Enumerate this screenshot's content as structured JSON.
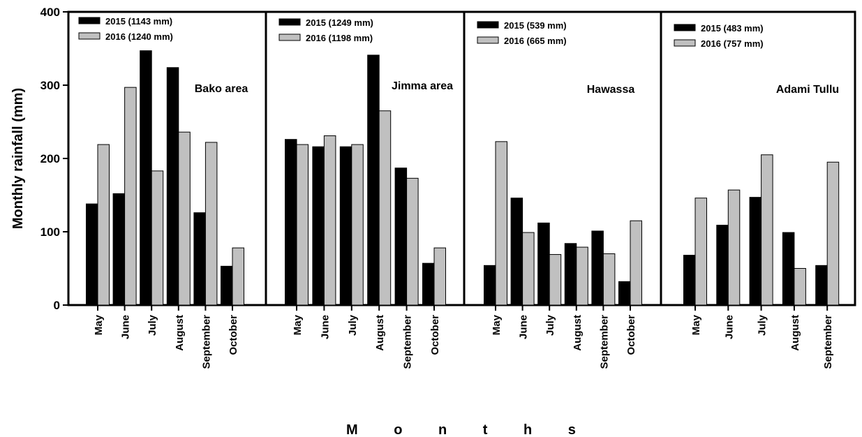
{
  "chart_data": {
    "type": "bar",
    "ylabel": "Monthly rainfall (mm)",
    "xlabel": "M o n t h s",
    "ylim": [
      0,
      400
    ],
    "yticks": [
      0,
      100,
      200,
      300,
      400
    ],
    "colors": {
      "2015": "#000000",
      "2016": "#c0c0c0"
    },
    "panels": [
      {
        "title": "Bako area",
        "categories": [
          "May",
          "June",
          "July",
          "August",
          "September",
          "October"
        ],
        "series": [
          {
            "name": "2015 (1143 mm)",
            "values": [
              138,
              152,
              347,
              324,
              126,
              53
            ]
          },
          {
            "name": "2016 (1240 mm)",
            "values": [
              219,
              297,
              183,
              236,
              222,
              78
            ]
          }
        ]
      },
      {
        "title": "Jimma area",
        "categories": [
          "May",
          "June",
          "July",
          "August",
          "September",
          "October"
        ],
        "series": [
          {
            "name": "2015 (1249 mm)",
            "values": [
              226,
              216,
              216,
              341,
              187,
              57
            ]
          },
          {
            "name": "2016 (1198 mm)",
            "values": [
              219,
              231,
              219,
              265,
              173,
              78
            ]
          }
        ]
      },
      {
        "title": "Hawassa",
        "categories": [
          "May",
          "June",
          "July",
          "August",
          "September",
          "October"
        ],
        "series": [
          {
            "name": "2015 (539 mm)",
            "values": [
              54,
              146,
              112,
              84,
              101,
              32
            ]
          },
          {
            "name": "2016 (665 mm)",
            "values": [
              223,
              99,
              69,
              79,
              70,
              115
            ]
          }
        ]
      },
      {
        "title": "Adami Tullu",
        "categories": [
          "May",
          "June",
          "July",
          "August",
          "September"
        ],
        "series": [
          {
            "name": "2015 (483 mm)",
            "values": [
              68,
              109,
              147,
              99,
              54
            ]
          },
          {
            "name": "2016 (757 mm)",
            "values": [
              146,
              157,
              205,
              50,
              195
            ]
          }
        ]
      }
    ]
  }
}
